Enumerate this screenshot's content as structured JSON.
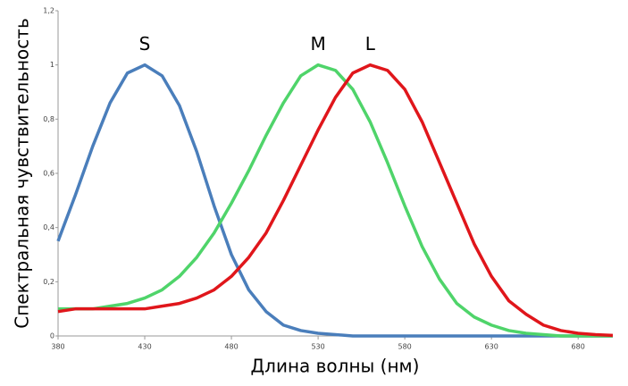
{
  "chart_data": {
    "type": "line",
    "x_label": "Длина волны (нм)",
    "y_label": "Спектральная чувствительность",
    "x": [
      380,
      390,
      400,
      410,
      420,
      430,
      440,
      450,
      460,
      470,
      480,
      490,
      500,
      510,
      520,
      530,
      540,
      550,
      560,
      570,
      580,
      590,
      600,
      610,
      620,
      630,
      640,
      650,
      660,
      670,
      680,
      690,
      700
    ],
    "series": [
      {
        "name": "S",
        "color": "#4a7ebb",
        "values": [
          0.35,
          0.52,
          0.7,
          0.86,
          0.97,
          1.0,
          0.96,
          0.85,
          0.68,
          0.48,
          0.3,
          0.17,
          0.09,
          0.04,
          0.02,
          0.01,
          0.005,
          0,
          0,
          0,
          0,
          0,
          0,
          0,
          0,
          0,
          0,
          0,
          0,
          0,
          0,
          0,
          0
        ]
      },
      {
        "name": "M",
        "color": "#4fd46a",
        "values": [
          0.1,
          0.1,
          0.1,
          0.11,
          0.12,
          0.14,
          0.17,
          0.22,
          0.29,
          0.38,
          0.49,
          0.61,
          0.74,
          0.86,
          0.96,
          1.0,
          0.98,
          0.91,
          0.79,
          0.64,
          0.48,
          0.33,
          0.21,
          0.12,
          0.07,
          0.04,
          0.02,
          0.01,
          0.005,
          0,
          0,
          0,
          0
        ]
      },
      {
        "name": "L",
        "color": "#e0161b",
        "values": [
          0.09,
          0.1,
          0.1,
          0.1,
          0.1,
          0.1,
          0.11,
          0.12,
          0.14,
          0.17,
          0.22,
          0.29,
          0.38,
          0.5,
          0.63,
          0.76,
          0.88,
          0.97,
          1.0,
          0.98,
          0.91,
          0.79,
          0.64,
          0.49,
          0.34,
          0.22,
          0.13,
          0.08,
          0.04,
          0.02,
          0.01,
          0.005,
          0.002
        ]
      }
    ],
    "xlim": [
      380,
      700
    ],
    "xticks": [
      380,
      430,
      480,
      530,
      580,
      630,
      680
    ],
    "ylim": [
      0,
      1.2
    ],
    "yticks": [
      0,
      {
        "value": 0.2,
        "label": "0,2"
      },
      {
        "value": 0.4,
        "label": "0,4"
      },
      {
        "value": 0.6,
        "label": "0,6"
      },
      {
        "value": 0.8,
        "label": "0,8"
      },
      1,
      {
        "value": 1.2,
        "label": "1,2"
      }
    ]
  }
}
